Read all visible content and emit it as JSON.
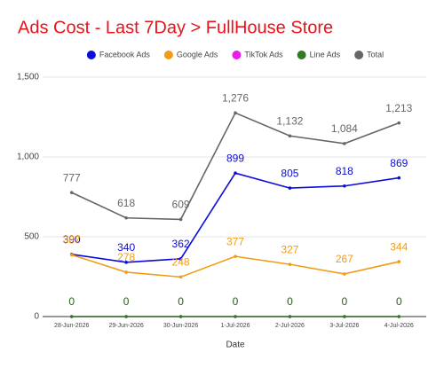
{
  "chart_data": {
    "type": "line",
    "title": "Ads Cost - Last 7Day > FullHouse Store",
    "x_label": "Date",
    "categories": [
      "28-Jun-2026",
      "29-Jun-2026",
      "30-Jun-2026",
      "1-Jul-2026",
      "2-Jul-2026",
      "3-Jul-2026",
      "4-Jul-2026"
    ],
    "series": [
      {
        "name": "Facebook Ads",
        "color": "#0b0bdc",
        "values": [
          390,
          340,
          362,
          899,
          805,
          818,
          869
        ]
      },
      {
        "name": "Google Ads",
        "color": "#f29b13",
        "values": [
          387,
          278,
          248,
          377,
          327,
          267,
          344
        ]
      },
      {
        "name": "TikTok Ads",
        "color": "#e81ee8",
        "values": [
          0,
          0,
          0,
          0,
          0,
          0,
          0
        ]
      },
      {
        "name": "Line Ads",
        "color": "#2f7d1f",
        "values": [
          0,
          0,
          0,
          0,
          0,
          0,
          0
        ]
      },
      {
        "name": "Total",
        "color": "#666666",
        "values": [
          777,
          618,
          609,
          1276,
          1132,
          1084,
          1213
        ],
        "value_labels": [
          "777",
          "618",
          "609",
          "1,276",
          "1,132",
          "1,084",
          "1,213"
        ]
      }
    ],
    "ylim": [
      0,
      1500
    ],
    "yticks": [
      0,
      500,
      {
        "value": 1000,
        "label": "1,000"
      },
      {
        "value": 1500,
        "label": "1,500"
      }
    ],
    "grid": true,
    "legend": "top"
  }
}
